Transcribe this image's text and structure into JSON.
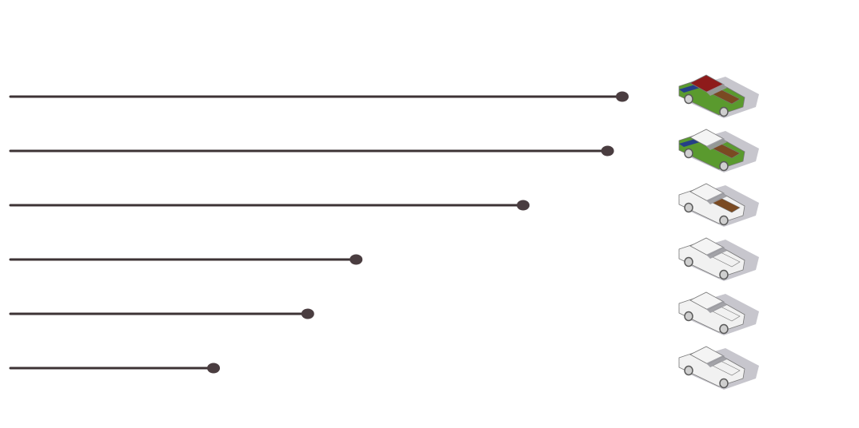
{
  "chart_data": {
    "type": "bar",
    "style": "lollipop",
    "orientation": "horizontal",
    "title": "",
    "xlabel": "",
    "ylabel": "",
    "axis_visible": false,
    "grid": false,
    "legend": "none",
    "xlim": [
      0,
      100
    ],
    "values": [
      100,
      97.6,
      83.8,
      56.5,
      48.6,
      33.2
    ],
    "categories": [
      "",
      "",
      "",
      "",
      "",
      ""
    ],
    "markers": [
      {
        "icon": "car-icon",
        "body_color": "#5a9a2e",
        "roof_color": "#8e1b1b",
        "stripe_color": "#233a8c",
        "bed_color": "#7a4a22"
      },
      {
        "icon": "car-icon",
        "body_color": "#5a9a2e",
        "roof_color": "#f4f4f4",
        "stripe_color": "#233a8c",
        "bed_color": "#7a4a22"
      },
      {
        "icon": "car-icon",
        "body_color": "#f1f1f1",
        "roof_color": "#f4f4f4",
        "stripe_color": "#f1f1f1",
        "bed_color": "#7a4a22"
      },
      {
        "icon": "car-icon",
        "body_color": "#f1f1f1",
        "roof_color": "#f4f4f4",
        "stripe_color": "#f1f1f1",
        "bed_color": "#f1f1f1"
      },
      {
        "icon": "car-icon",
        "body_color": "#f1f1f1",
        "roof_color": "#f4f4f4",
        "stripe_color": "#f1f1f1",
        "bed_color": "#f1f1f1"
      },
      {
        "icon": "car-icon",
        "body_color": "#f1f1f1",
        "roof_color": "#f4f4f4",
        "stripe_color": "#f1f1f1",
        "bed_color": "#f1f1f1"
      }
    ],
    "colors": {
      "line": "#3d3335",
      "dot": "#4a3d40",
      "shadow": "#bdbcc4",
      "outline": "#777777",
      "window": "#9a9aa0"
    }
  }
}
